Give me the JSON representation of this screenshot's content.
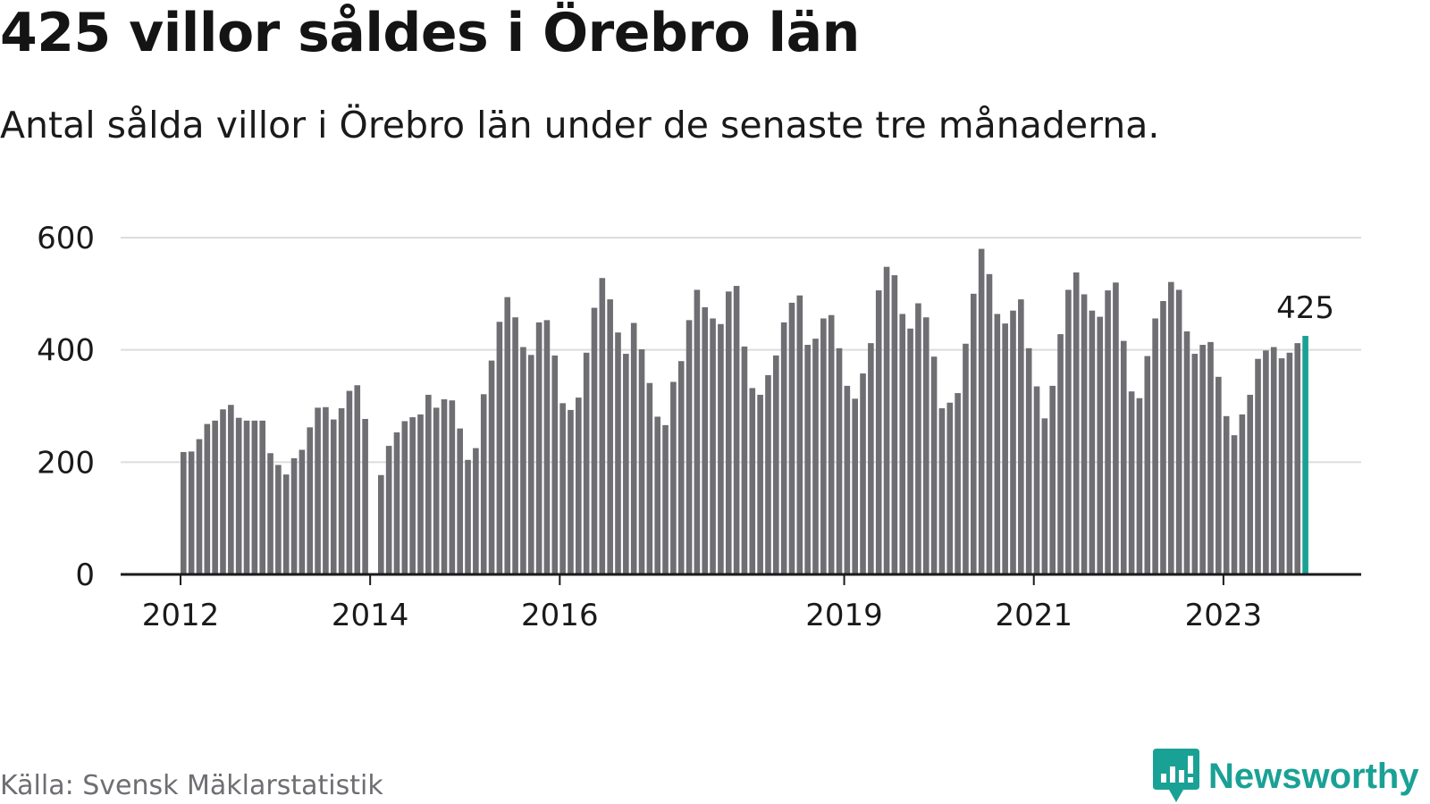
{
  "title": "425 villor såldes i Örebro län",
  "subtitle": "Antal sålda villor i Örebro län under de senaste tre månaderna.",
  "source": "Källa: Svensk Mäklarstatistik",
  "brand": "Newsworthy",
  "colors": {
    "bar": "#6e6e73",
    "highlight": "#1aa195",
    "grid": "#dcdcdc",
    "axis": "#1a1a1a",
    "text": "#1a1a1a"
  },
  "chart_data": {
    "type": "bar",
    "x_ticks": [
      "2012",
      "2014",
      "2016",
      "2019",
      "2021",
      "2023"
    ],
    "y_ticks": [
      0,
      200,
      400,
      600
    ],
    "ylim": [
      0,
      600
    ],
    "grid": true,
    "highlight_label": "425",
    "start": "2012-01",
    "months": [
      "2012-01",
      "2012-02",
      "2012-03",
      "2012-04",
      "2012-05",
      "2012-06",
      "2012-07",
      "2012-08",
      "2012-09",
      "2012-10",
      "2012-11",
      "2012-12",
      "2013-01",
      "2013-02",
      "2013-03",
      "2013-04",
      "2013-05",
      "2013-06",
      "2013-07",
      "2013-08",
      "2013-09",
      "2013-10",
      "2013-11",
      "2013-12",
      "2014-01",
      "2014-02",
      "2014-03",
      "2014-04",
      "2014-05",
      "2014-06",
      "2014-07",
      "2014-08",
      "2014-09",
      "2014-10",
      "2014-11",
      "2014-12",
      "2015-01",
      "2015-02",
      "2015-03",
      "2015-04",
      "2015-05",
      "2015-06",
      "2015-07",
      "2015-08",
      "2015-09",
      "2015-10",
      "2015-11",
      "2015-12",
      "2016-01",
      "2016-02",
      "2016-03",
      "2016-04",
      "2016-05",
      "2016-06",
      "2016-07",
      "2016-08",
      "2016-09",
      "2016-10",
      "2016-11",
      "2016-12",
      "2017-01",
      "2017-02",
      "2017-03",
      "2017-04",
      "2017-05",
      "2017-06",
      "2017-07",
      "2017-08",
      "2017-09",
      "2017-10",
      "2017-11",
      "2017-12",
      "2018-01",
      "2018-02",
      "2018-03",
      "2018-04",
      "2018-05",
      "2018-06",
      "2018-07",
      "2018-08",
      "2018-09",
      "2018-10",
      "2018-11",
      "2018-12",
      "2019-01",
      "2019-02",
      "2019-03",
      "2019-04",
      "2019-05",
      "2019-06",
      "2019-07",
      "2019-08",
      "2019-09",
      "2019-10",
      "2019-11",
      "2019-12",
      "2020-01",
      "2020-02",
      "2020-03",
      "2020-04",
      "2020-05",
      "2020-06",
      "2020-07",
      "2020-08",
      "2020-09",
      "2020-10",
      "2020-11",
      "2020-12",
      "2021-01",
      "2021-02",
      "2021-03",
      "2021-04",
      "2021-05",
      "2021-06",
      "2021-07",
      "2021-08",
      "2021-09",
      "2021-10",
      "2021-11",
      "2021-12",
      "2022-01",
      "2022-02",
      "2022-03",
      "2022-04",
      "2022-05",
      "2022-06",
      "2022-07",
      "2022-08",
      "2022-09",
      "2022-10",
      "2022-11",
      "2022-12",
      "2023-01",
      "2023-02",
      "2023-03",
      "2023-04",
      "2023-05",
      "2023-06",
      "2023-07",
      "2023-08",
      "2023-09",
      "2023-10",
      "2023-11",
      "2023-12"
    ],
    "values": [
      218,
      219,
      241,
      268,
      274,
      294,
      302,
      279,
      274,
      274,
      274,
      216,
      195,
      178,
      207,
      222,
      262,
      297,
      298,
      276,
      296,
      327,
      337,
      277,
      null,
      177,
      229,
      253,
      273,
      280,
      285,
      320,
      297,
      312,
      310,
      260,
      204,
      225,
      321,
      381,
      450,
      494,
      458,
      405,
      391,
      449,
      453,
      390,
      305,
      293,
      315,
      395,
      475,
      528,
      490,
      431,
      393,
      448,
      401,
      341,
      281,
      266,
      343,
      380,
      453,
      507,
      476,
      456,
      446,
      504,
      514,
      406,
      332,
      320,
      355,
      390,
      449,
      484,
      497,
      409,
      420,
      456,
      462,
      403,
      336,
      313,
      358,
      412,
      506,
      548,
      533,
      464,
      438,
      483,
      458,
      388,
      296,
      306,
      323,
      411,
      500,
      580,
      535,
      464,
      447,
      470,
      490,
      403,
      335,
      278,
      336,
      428,
      507,
      538,
      499,
      470,
      459,
      506,
      520,
      416,
      326,
      314,
      389,
      456,
      487,
      521,
      507,
      433,
      393,
      409,
      414,
      352,
      282,
      248,
      285,
      320,
      384,
      399,
      405,
      385,
      395,
      412,
      425,
      null
    ],
    "highlight_index": 142
  }
}
